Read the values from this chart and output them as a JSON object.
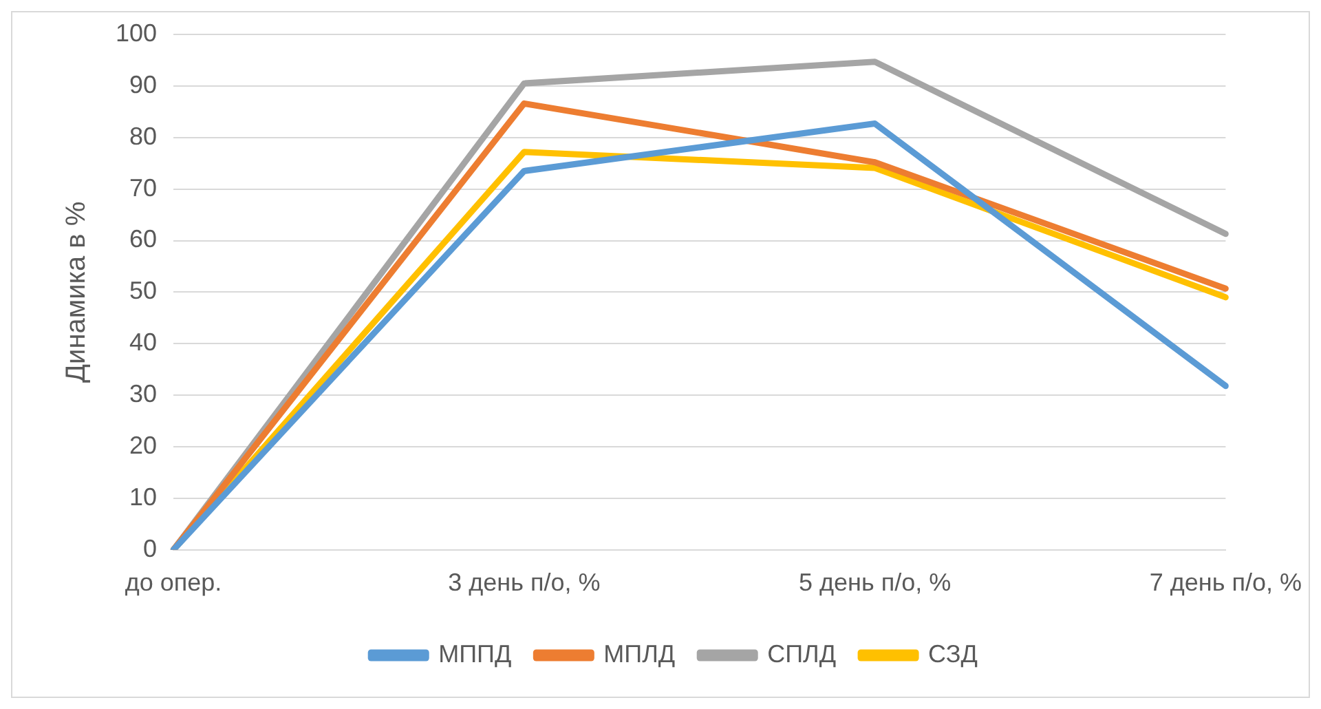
{
  "chart_data": {
    "type": "line",
    "ylabel": "Динамика в %",
    "categories": [
      "до опер.",
      "3 день п/о, %",
      "5 день п/о, %",
      "7 день п/о, %"
    ],
    "series": [
      {
        "name": "МППД",
        "color": "#5b9bd5",
        "values": [
          0,
          73.5,
          82.7,
          31.8
        ]
      },
      {
        "name": "МПЛД",
        "color": "#ed7d31",
        "values": [
          0,
          86.6,
          75.2,
          50.7
        ]
      },
      {
        "name": "СПЛД",
        "color": "#a5a5a5",
        "values": [
          0,
          90.5,
          94.7,
          61.3
        ]
      },
      {
        "name": "СЗД",
        "color": "#ffc000",
        "values": [
          0,
          77.2,
          74.1,
          49.0
        ]
      }
    ],
    "ylim": [
      0,
      100
    ],
    "yticks": [
      0,
      10,
      20,
      30,
      40,
      50,
      60,
      70,
      80,
      90,
      100
    ],
    "grid": "y",
    "legend": "bottom",
    "marker": "none",
    "line_style": "solid"
  }
}
